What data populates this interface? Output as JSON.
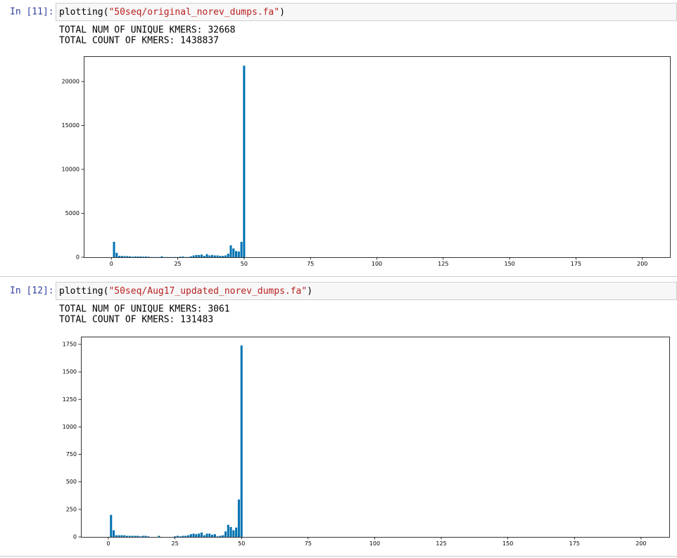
{
  "cells": [
    {
      "prompt": "In [11]:",
      "code": "plotting(\"50seq/original_norev_dumps.fa\")",
      "output": [
        "TOTAL NUM OF UNIQUE KMERS: 32668",
        "TOTAL COUNT OF KMERS: 1438837"
      ],
      "chart": {
        "type": "bar",
        "color": "#0072b2",
        "x": [
          0,
          1,
          2,
          3,
          4,
          5,
          6,
          7,
          8,
          9,
          10,
          11,
          12,
          13,
          14,
          15,
          16,
          17,
          18,
          19,
          20,
          21,
          22,
          23,
          24,
          25,
          26,
          27,
          28,
          29,
          30,
          31,
          32,
          33,
          34,
          35,
          36,
          37,
          38,
          39,
          40,
          41,
          42,
          43,
          44,
          45,
          46,
          47,
          48,
          49,
          50
        ],
        "values": [
          0,
          1750,
          500,
          150,
          150,
          120,
          130,
          100,
          60,
          90,
          80,
          90,
          70,
          80,
          60,
          20,
          20,
          20,
          20,
          100,
          20,
          20,
          20,
          20,
          20,
          20,
          60,
          80,
          20,
          30,
          100,
          200,
          250,
          250,
          300,
          150,
          350,
          200,
          250,
          200,
          200,
          150,
          150,
          200,
          400,
          1350,
          1000,
          700,
          650,
          1750,
          21800
        ],
        "xlim": [
          -10.4,
          210.4
        ],
        "xticks": [
          0,
          25,
          50,
          75,
          100,
          125,
          150,
          175,
          200
        ],
        "ylim": [
          0,
          22880
        ],
        "yticks": [
          0,
          5000,
          10000,
          15000,
          20000
        ]
      }
    },
    {
      "prompt": "In [12]:",
      "code": "plotting(\"50seq/Aug17_updated_norev_dumps.fa\")",
      "output": [
        "TOTAL NUM OF UNIQUE KMERS: 3061",
        "TOTAL COUNT OF KMERS: 131483"
      ],
      "chart": {
        "type": "bar",
        "color": "#0072b2",
        "x": [
          0,
          1,
          2,
          3,
          4,
          5,
          6,
          7,
          8,
          9,
          10,
          11,
          12,
          13,
          14,
          15,
          16,
          17,
          18,
          19,
          20,
          21,
          22,
          23,
          24,
          25,
          26,
          27,
          28,
          29,
          30,
          31,
          32,
          33,
          34,
          35,
          36,
          37,
          38,
          39,
          40,
          41,
          42,
          43,
          44,
          45,
          46,
          47,
          48,
          49,
          50
        ],
        "values": [
          0,
          200,
          60,
          15,
          15,
          15,
          15,
          10,
          10,
          10,
          10,
          10,
          5,
          10,
          10,
          5,
          0,
          0,
          0,
          10,
          0,
          0,
          0,
          0,
          0,
          5,
          10,
          5,
          10,
          10,
          15,
          25,
          30,
          25,
          30,
          40,
          15,
          30,
          30,
          20,
          25,
          5,
          10,
          15,
          50,
          110,
          90,
          60,
          85,
          340,
          1740
        ],
        "xlim": [
          -10.3,
          210.6
        ],
        "xticks": [
          0,
          25,
          50,
          75,
          100,
          125,
          150,
          175,
          200
        ],
        "ylim": [
          0,
          1820
        ],
        "yticks": [
          0,
          250,
          500,
          750,
          1000,
          1250,
          1500,
          1750
        ]
      }
    }
  ]
}
